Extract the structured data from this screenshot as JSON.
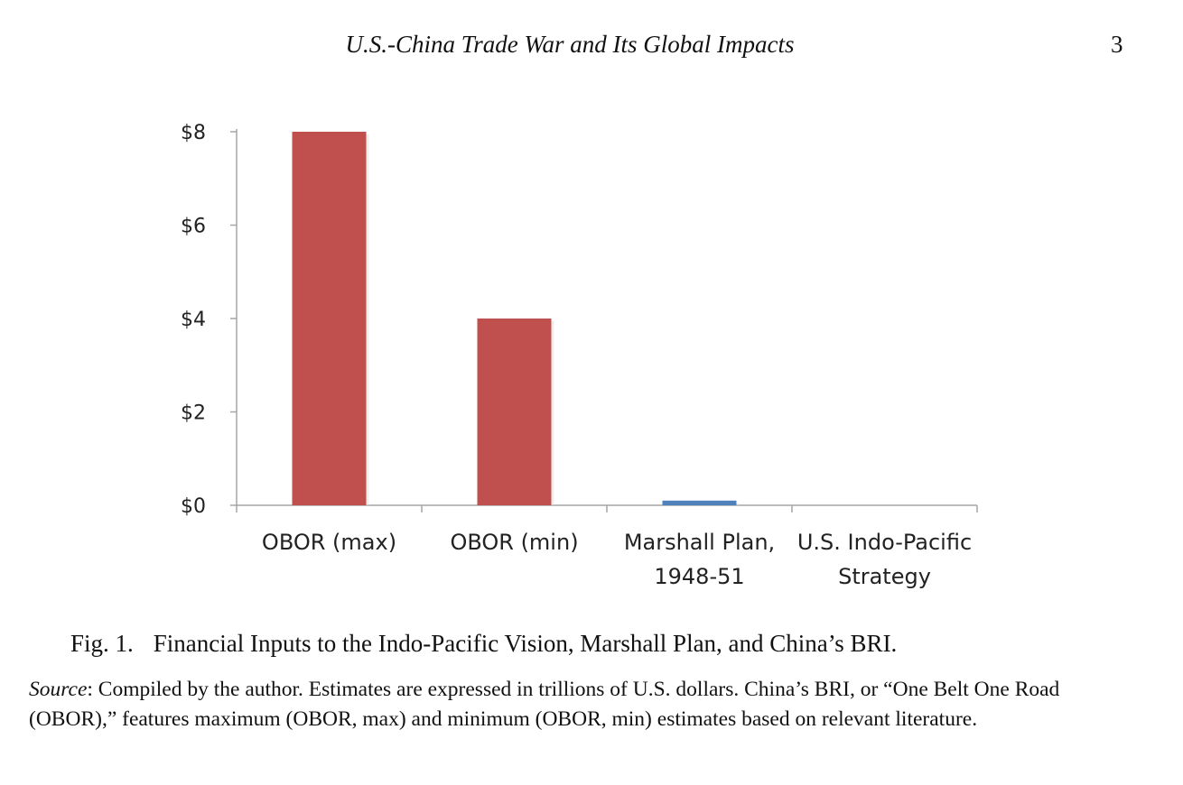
{
  "header": {
    "title": "U.S.-China Trade War and Its Global Impacts",
    "page_number": "3"
  },
  "caption": {
    "label": "Fig. 1.",
    "text": "Financial Inputs to the Indo-Pacific Vision, Marshall Plan, and China’s BRI."
  },
  "source": {
    "label": "Source",
    "text": ": Compiled by the author. Estimates are expressed in trillions of U.S. dollars. China’s BRI, or “One Belt One Road (OBOR),” features maximum (OBOR, max) and minimum (OBOR, min) estimates based on relevant literature."
  },
  "chart_data": {
    "type": "bar",
    "title": "",
    "xlabel": "",
    "ylabel": "",
    "categories": [
      [
        "OBOR (max)"
      ],
      [
        "OBOR (min)"
      ],
      [
        "Marshall Plan,",
        "1948-51"
      ],
      [
        "U.S. Indo-Pacific",
        "Strategy"
      ]
    ],
    "values": [
      8,
      4,
      0.1,
      0
    ],
    "colors": [
      "#c0504d",
      "#c0504d",
      "#4f81bd",
      "#4f81bd"
    ],
    "yticks": [
      "$0",
      "$2",
      "$4",
      "$6",
      "$8"
    ],
    "ytick_values": [
      0,
      2,
      4,
      6,
      8
    ],
    "ylim": [
      0,
      8
    ],
    "grid": false,
    "axis_color": "#a6a6a6"
  }
}
